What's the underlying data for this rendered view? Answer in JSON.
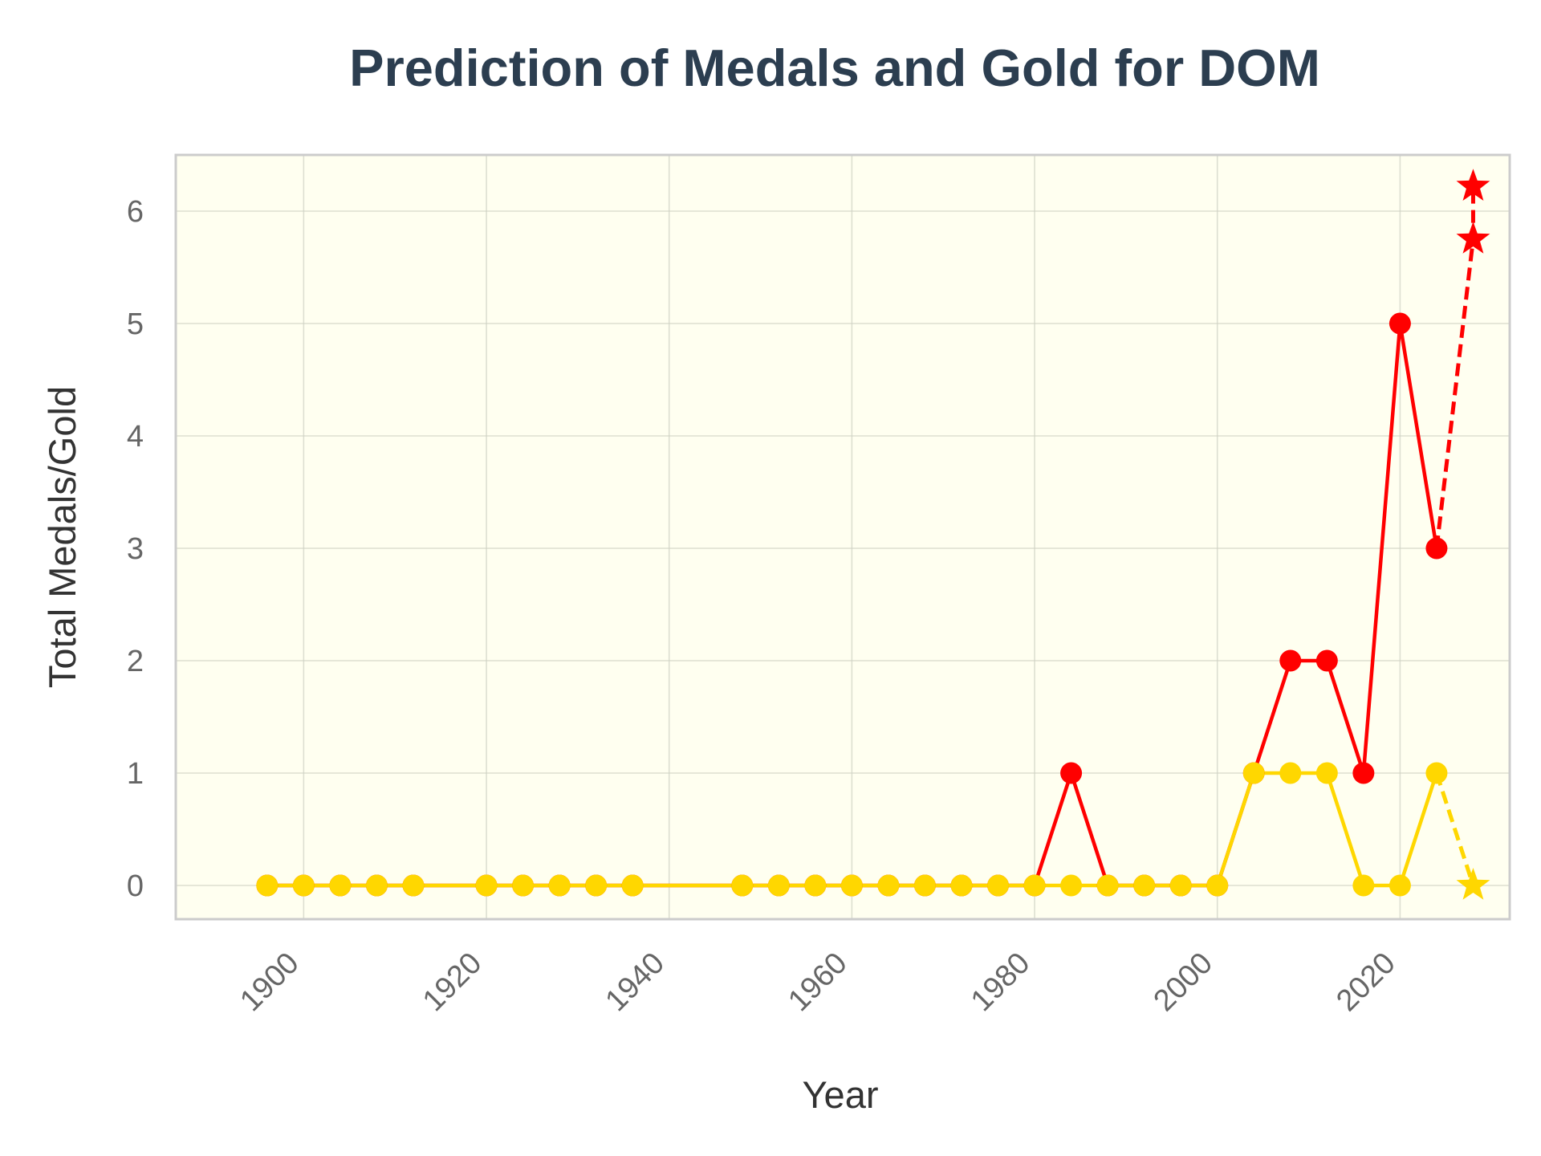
{
  "chart_data": {
    "type": "line",
    "title": "Prediction of Medals and Gold for DOM",
    "xlabel": "Year",
    "ylabel": "Total Medals/Gold",
    "xlim": [
      1886,
      2032
    ],
    "ylim": [
      -0.3,
      6.5
    ],
    "x_ticks": [
      1900,
      1920,
      1940,
      1960,
      1980,
      2000,
      2020
    ],
    "y_ticks": [
      0,
      1,
      2,
      3,
      4,
      5,
      6
    ],
    "grid": true,
    "legend": "none",
    "colors": {
      "plot_background": "#fffff0",
      "frame": "#cccccc",
      "medals": "#ff0000",
      "gold": "#ffd700"
    },
    "series": [
      {
        "key": "medals",
        "color": "#ff0000",
        "marker": "circle",
        "x": [
          1896,
          1900,
          1904,
          1908,
          1912,
          1920,
          1924,
          1928,
          1932,
          1936,
          1948,
          1952,
          1956,
          1960,
          1964,
          1968,
          1972,
          1976,
          1980,
          1984,
          1988,
          1992,
          1996,
          2000,
          2004,
          2008,
          2012,
          2016,
          2020,
          2024
        ],
        "y": [
          0,
          0,
          0,
          0,
          0,
          0,
          0,
          0,
          0,
          0,
          0,
          0,
          0,
          0,
          0,
          0,
          0,
          0,
          0,
          1,
          0,
          0,
          0,
          0,
          1,
          2,
          2,
          1,
          5,
          3
        ],
        "prediction": {
          "x": [
            2024,
            2028,
            2028
          ],
          "y": [
            3,
            5.75,
            6.22
          ],
          "marker": "star",
          "style": "dashed"
        }
      },
      {
        "key": "gold",
        "color": "#ffd700",
        "marker": "circle",
        "x": [
          1896,
          1900,
          1904,
          1908,
          1912,
          1920,
          1924,
          1928,
          1932,
          1936,
          1948,
          1952,
          1956,
          1960,
          1964,
          1968,
          1972,
          1976,
          1980,
          1984,
          1988,
          1992,
          1996,
          2000,
          2004,
          2008,
          2012,
          2016,
          2020,
          2024
        ],
        "y": [
          0,
          0,
          0,
          0,
          0,
          0,
          0,
          0,
          0,
          0,
          0,
          0,
          0,
          0,
          0,
          0,
          0,
          0,
          0,
          0,
          0,
          0,
          0,
          0,
          1,
          1,
          1,
          0,
          0,
          1
        ],
        "prediction": {
          "x": [
            2024,
            2028
          ],
          "y": [
            1,
            0
          ],
          "marker": "star",
          "style": "dashed"
        }
      }
    ]
  }
}
